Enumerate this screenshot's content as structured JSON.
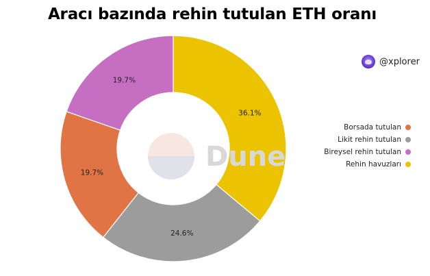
{
  "chart_data": {
    "type": "pie",
    "title": "Aracı bazında rehin tutulan ETH oranı",
    "donut": true,
    "slices": [
      {
        "label": "Rehin havuzları",
        "value": 36.1,
        "display": "36.1%",
        "color": "#ecc300"
      },
      {
        "label": "Likit rehin tutulan",
        "value": 24.6,
        "display": "24.6%",
        "color": "#9c9c9c"
      },
      {
        "label": "Borsada tutulan",
        "value": 19.7,
        "display": "19.7%",
        "color": "#e07444"
      },
      {
        "label": "Bireysel rehin tutulan",
        "value": 19.7,
        "display": "19.7%",
        "color": "#c66fc2"
      }
    ],
    "legend_order": [
      "Borsada tutulan",
      "Likit rehin tutulan",
      "Bireysel rehin tutulan",
      "Rehin havuzları"
    ],
    "legend_placement": "right"
  },
  "author_handle": "@xplorer",
  "icons": {
    "avatar": "xplorer-avatar-icon"
  },
  "watermark": "Dune"
}
